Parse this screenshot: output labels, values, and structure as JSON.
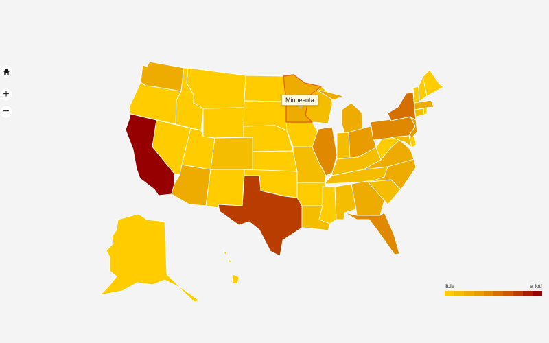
{
  "controls": {
    "home_icon": "home-icon",
    "zoom_in_label": "+",
    "zoom_out_label": "−"
  },
  "tooltip": {
    "text": "Minnesota"
  },
  "legend": {
    "low_label": "little",
    "high_label": "a lot!",
    "colors": [
      "#ffcc00",
      "#f5bd00",
      "#eeac00",
      "#e89c00",
      "#e08800",
      "#d56f00",
      "#c95a00",
      "#ba3d00",
      "#a81f00",
      "#970000"
    ]
  },
  "scale": [
    "#ffcc00",
    "#f5bd00",
    "#eeac00",
    "#e89c00",
    "#e08800",
    "#d56f00",
    "#c95a00",
    "#ba3d00",
    "#a81f00",
    "#970000"
  ],
  "states": [
    {
      "name": "Washington",
      "level": 2
    },
    {
      "name": "Oregon",
      "level": 0
    },
    {
      "name": "California",
      "level": 9
    },
    {
      "name": "Idaho",
      "level": 0
    },
    {
      "name": "Nevada",
      "level": 0
    },
    {
      "name": "Arizona",
      "level": 2
    },
    {
      "name": "Utah",
      "level": 0
    },
    {
      "name": "Montana",
      "level": 0
    },
    {
      "name": "Wyoming",
      "level": 0
    },
    {
      "name": "Colorado",
      "level": 1
    },
    {
      "name": "New Mexico",
      "level": 0
    },
    {
      "name": "North Dakota",
      "level": 0
    },
    {
      "name": "South Dakota",
      "level": 0
    },
    {
      "name": "Nebraska",
      "level": 0
    },
    {
      "name": "Kansas",
      "level": 0
    },
    {
      "name": "Oklahoma",
      "level": 0
    },
    {
      "name": "Texas",
      "level": 7
    },
    {
      "name": "Minnesota",
      "level": 2,
      "highlighted": true
    },
    {
      "name": "Iowa",
      "level": 0
    },
    {
      "name": "Missouri",
      "level": 1
    },
    {
      "name": "Arkansas",
      "level": 0
    },
    {
      "name": "Louisiana",
      "level": 1
    },
    {
      "name": "Wisconsin",
      "level": 1
    },
    {
      "name": "Illinois",
      "level": 4
    },
    {
      "name": "Michigan",
      "level": 2
    },
    {
      "name": "Indiana",
      "level": 1
    },
    {
      "name": "Ohio",
      "level": 3
    },
    {
      "name": "Kentucky",
      "level": 1
    },
    {
      "name": "Tennessee",
      "level": 1
    },
    {
      "name": "Mississippi",
      "level": 0
    },
    {
      "name": "Alabama",
      "level": 1
    },
    {
      "name": "Georgia",
      "level": 2
    },
    {
      "name": "Florida",
      "level": 4
    },
    {
      "name": "South Carolina",
      "level": 1
    },
    {
      "name": "North Carolina",
      "level": 2
    },
    {
      "name": "Virginia",
      "level": 2
    },
    {
      "name": "West Virginia",
      "level": 0
    },
    {
      "name": "Pennsylvania",
      "level": 4
    },
    {
      "name": "New York",
      "level": 5
    },
    {
      "name": "Maryland",
      "level": 1
    },
    {
      "name": "Delaware",
      "level": 0
    },
    {
      "name": "New Jersey",
      "level": 3
    },
    {
      "name": "Connecticut",
      "level": 1
    },
    {
      "name": "Rhode Island",
      "level": 0
    },
    {
      "name": "Massachusetts",
      "level": 2
    },
    {
      "name": "Vermont",
      "level": 0
    },
    {
      "name": "New Hampshire",
      "level": 0
    },
    {
      "name": "Maine",
      "level": 0
    },
    {
      "name": "Alaska",
      "level": 0
    },
    {
      "name": "Hawaii",
      "level": 0
    }
  ]
}
